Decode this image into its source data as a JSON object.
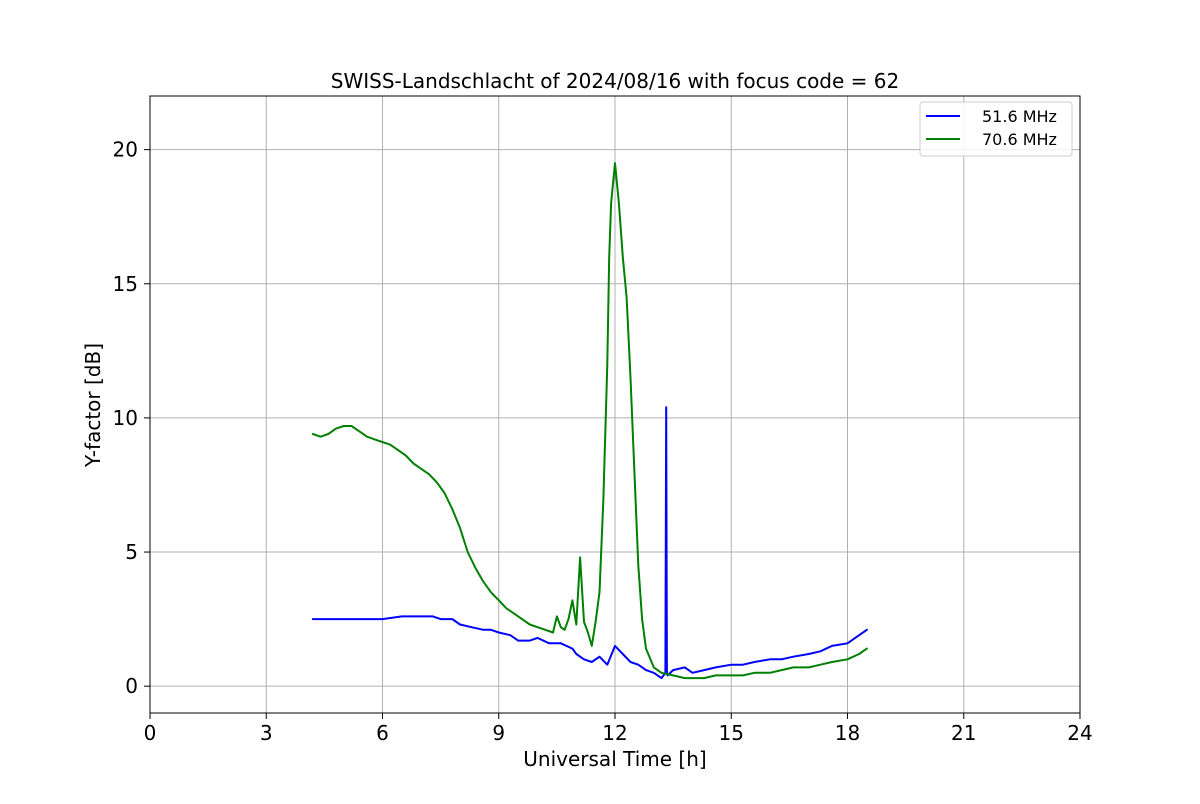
{
  "chart_data": {
    "type": "line",
    "title": "SWISS-Landschlacht of 2024/08/16 with focus code = 62",
    "xlabel": "Universal Time [h]",
    "ylabel": "Y-factor [dB]",
    "xlim": [
      0,
      24
    ],
    "ylim": [
      -1,
      22
    ],
    "xticks": [
      0,
      3,
      6,
      9,
      12,
      15,
      18,
      21,
      24
    ],
    "yticks": [
      0,
      5,
      10,
      15,
      20
    ],
    "grid": true,
    "legend_position": "top-right",
    "series": [
      {
        "name": "51.6 MHz",
        "color": "#0000ff",
        "x": [
          4.2,
          4.5,
          5.0,
          5.5,
          6.0,
          6.5,
          7.0,
          7.3,
          7.5,
          7.8,
          8.0,
          8.3,
          8.6,
          8.8,
          9.0,
          9.3,
          9.5,
          9.8,
          10.0,
          10.3,
          10.6,
          10.9,
          11.0,
          11.2,
          11.4,
          11.6,
          11.8,
          12.0,
          12.2,
          12.4,
          12.6,
          12.8,
          13.0,
          13.2,
          13.3,
          13.32,
          13.34,
          13.36,
          13.5,
          13.8,
          14.0,
          14.3,
          14.6,
          15.0,
          15.3,
          15.6,
          16.0,
          16.3,
          16.6,
          17.0,
          17.3,
          17.6,
          18.0,
          18.3,
          18.5
        ],
        "y": [
          2.5,
          2.5,
          2.5,
          2.5,
          2.5,
          2.6,
          2.6,
          2.6,
          2.5,
          2.5,
          2.3,
          2.2,
          2.1,
          2.1,
          2.0,
          1.9,
          1.7,
          1.7,
          1.8,
          1.6,
          1.6,
          1.4,
          1.2,
          1.0,
          0.9,
          1.1,
          0.8,
          1.5,
          1.2,
          0.9,
          0.8,
          0.6,
          0.5,
          0.3,
          0.5,
          10.4,
          0.5,
          0.4,
          0.6,
          0.7,
          0.5,
          0.6,
          0.7,
          0.8,
          0.8,
          0.9,
          1.0,
          1.0,
          1.1,
          1.2,
          1.3,
          1.5,
          1.6,
          1.9,
          2.1
        ]
      },
      {
        "name": "70.6 MHz",
        "color": "#008000",
        "x": [
          4.2,
          4.4,
          4.6,
          4.8,
          5.0,
          5.2,
          5.4,
          5.6,
          5.8,
          6.0,
          6.2,
          6.4,
          6.6,
          6.8,
          7.0,
          7.2,
          7.4,
          7.6,
          7.8,
          8.0,
          8.2,
          8.4,
          8.6,
          8.8,
          9.0,
          9.2,
          9.4,
          9.6,
          9.8,
          10.0,
          10.2,
          10.4,
          10.5,
          10.6,
          10.7,
          10.8,
          10.9,
          11.0,
          11.1,
          11.2,
          11.3,
          11.4,
          11.5,
          11.6,
          11.7,
          11.8,
          11.85,
          11.9,
          12.0,
          12.1,
          12.2,
          12.3,
          12.4,
          12.5,
          12.6,
          12.7,
          12.8,
          13.0,
          13.2,
          13.5,
          13.8,
          14.0,
          14.3,
          14.6,
          15.0,
          15.3,
          15.6,
          16.0,
          16.3,
          16.6,
          17.0,
          17.3,
          17.6,
          18.0,
          18.3,
          18.5
        ],
        "y": [
          9.4,
          9.3,
          9.4,
          9.6,
          9.7,
          9.7,
          9.5,
          9.3,
          9.2,
          9.1,
          9.0,
          8.8,
          8.6,
          8.3,
          8.1,
          7.9,
          7.6,
          7.2,
          6.6,
          5.9,
          5.0,
          4.4,
          3.9,
          3.5,
          3.2,
          2.9,
          2.7,
          2.5,
          2.3,
          2.2,
          2.1,
          2.0,
          2.6,
          2.2,
          2.1,
          2.5,
          3.2,
          2.3,
          4.8,
          2.4,
          2.0,
          1.5,
          2.4,
          3.5,
          7.0,
          12.0,
          16.0,
          18.0,
          19.5,
          18.0,
          16.0,
          14.5,
          11.5,
          8.0,
          4.5,
          2.5,
          1.4,
          0.7,
          0.5,
          0.4,
          0.3,
          0.3,
          0.3,
          0.4,
          0.4,
          0.4,
          0.5,
          0.5,
          0.6,
          0.7,
          0.7,
          0.8,
          0.9,
          1.0,
          1.2,
          1.4
        ]
      }
    ]
  }
}
